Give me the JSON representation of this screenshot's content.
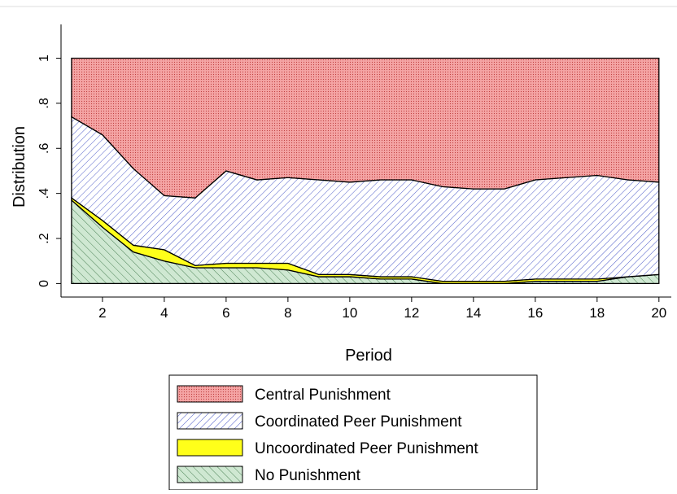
{
  "chart_data": {
    "type": "stacked_area",
    "x_label": "Period",
    "y_label": "Distribution",
    "x": [
      1,
      2,
      3,
      4,
      5,
      6,
      7,
      8,
      9,
      10,
      11,
      12,
      13,
      14,
      15,
      16,
      17,
      18,
      19,
      20
    ],
    "series": [
      {
        "name": "No Punishment",
        "color": "#cfe8d2",
        "values": [
          0.37,
          0.25,
          0.14,
          0.1,
          0.07,
          0.07,
          0.07,
          0.06,
          0.03,
          0.03,
          0.02,
          0.02,
          0.0,
          0.0,
          0.0,
          0.01,
          0.01,
          0.01,
          0.03,
          0.04
        ]
      },
      {
        "name": "Uncoordinated Peer Punishment",
        "color": "#ffff1a",
        "values": [
          0.01,
          0.03,
          0.03,
          0.05,
          0.01,
          0.02,
          0.02,
          0.03,
          0.01,
          0.01,
          0.01,
          0.01,
          0.01,
          0.01,
          0.01,
          0.01,
          0.01,
          0.01,
          0,
          0
        ]
      },
      {
        "name": "Coordinated Peer Punishment",
        "color": "#ffffff",
        "values": [
          0.36,
          0.38,
          0.34,
          0.24,
          0.3,
          0.41,
          0.37,
          0.38,
          0.42,
          0.41,
          0.43,
          0.43,
          0.42,
          0.41,
          0.41,
          0.44,
          0.45,
          0.46,
          0.43,
          0.41
        ]
      },
      {
        "name": "Central Punishment",
        "color": "#f4a4a4",
        "values": [
          0.26,
          0.34,
          0.49,
          0.61,
          0.62,
          0.5,
          0.54,
          0.53,
          0.54,
          0.55,
          0.54,
          0.54,
          0.57,
          0.58,
          0.58,
          0.54,
          0.53,
          0.52,
          0.54,
          0.55
        ]
      }
    ],
    "xlim": [
      0.66,
      20.4
    ],
    "xticks": [
      2,
      4,
      6,
      8,
      10,
      12,
      14,
      16,
      18,
      20
    ],
    "ylim": [
      -0.06,
      1.15
    ],
    "yticks": [
      0,
      {
        "value": 0.2,
        "label": ".2"
      },
      {
        "value": 0.4,
        "label": ".4"
      },
      {
        "value": 0.6,
        "label": ".6"
      },
      {
        "value": 0.8,
        "label": ".8"
      },
      1
    ]
  }
}
